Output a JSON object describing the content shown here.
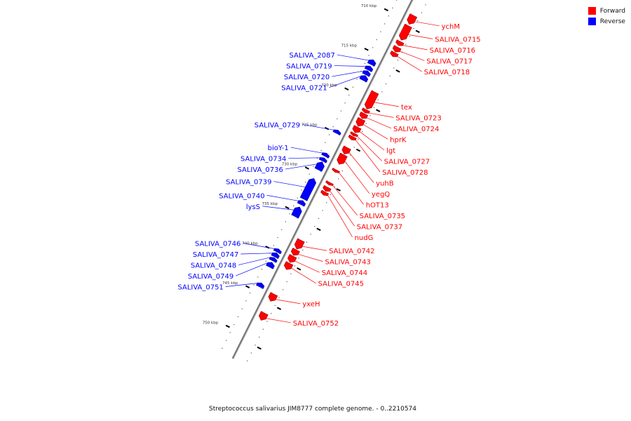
{
  "legend": {
    "forward_label": "Forward",
    "reverse_label": "Reverse",
    "forward_color": "#ff0000",
    "reverse_color": "#0000ff"
  },
  "caption": "Streptococcus salivarius JIM8777 complete genome. - 0..2210574",
  "axis": {
    "unit": "kbp",
    "ticks": [
      {
        "value": 710,
        "label": "710 kbp"
      },
      {
        "value": 715,
        "label": "715 kbp"
      },
      {
        "value": 720,
        "label": "720 kbp"
      },
      {
        "value": 725,
        "label": "725 kbp"
      },
      {
        "value": 730,
        "label": "730 kbp"
      },
      {
        "value": 735,
        "label": "735 kbp"
      },
      {
        "value": 740,
        "label": "740 kbp"
      },
      {
        "value": 745,
        "label": "745 kbp"
      },
      {
        "value": 750,
        "label": "750 kbp"
      }
    ]
  },
  "genes": {
    "forward": [
      {
        "name": "ychM",
        "start": 709.2,
        "end": 710.3
      },
      {
        "name": "SALIVA_0715",
        "start": 710.5,
        "end": 712.3
      },
      {
        "name": "SALIVA_0716",
        "start": 712.5,
        "end": 713.0
      },
      {
        "name": "SALIVA_0717",
        "start": 713.2,
        "end": 713.8
      },
      {
        "name": "SALIVA_0718",
        "start": 713.9,
        "end": 714.4
      },
      {
        "name": "tex",
        "start": 718.9,
        "end": 721.0
      },
      {
        "name": "SALIVA_0723",
        "start": 721.1,
        "end": 721.5
      },
      {
        "name": "SALIVA_0724",
        "start": 721.6,
        "end": 722.2
      },
      {
        "name": "hprK",
        "start": 722.3,
        "end": 723.2
      },
      {
        "name": "lgt",
        "start": 723.3,
        "end": 724.0
      },
      {
        "name": "SALIVA_0727",
        "start": 724.1,
        "end": 724.4
      },
      {
        "name": "SALIVA_0728",
        "start": 724.5,
        "end": 724.9
      },
      {
        "name": "yuhB",
        "start": 725.9,
        "end": 726.7
      },
      {
        "name": "yegQ",
        "start": 726.8,
        "end": 728.0
      },
      {
        "name": "hOT13",
        "start": 728.7,
        "end": 729.0
      },
      {
        "name": "SALIVA_0735",
        "start": 730.3,
        "end": 730.6
      },
      {
        "name": "SALIVA_0737",
        "start": 730.9,
        "end": 731.4
      },
      {
        "name": "nudG",
        "start": 731.5,
        "end": 731.9
      },
      {
        "name": "SALIVA_0742",
        "start": 737.6,
        "end": 738.7
      },
      {
        "name": "SALIVA_0743",
        "start": 738.8,
        "end": 739.5
      },
      {
        "name": "SALIVA_0744",
        "start": 739.6,
        "end": 740.4
      },
      {
        "name": "SALIVA_0745",
        "start": 740.5,
        "end": 741.3
      },
      {
        "name": "yxeH",
        "start": 744.4,
        "end": 745.3
      },
      {
        "name": "SALIVA_0752",
        "start": 746.8,
        "end": 747.7
      }
    ],
    "reverse": [
      {
        "name": "SALIVA_2087",
        "start": 715.7,
        "end": 716.3
      },
      {
        "name": "SALIVA_0719",
        "start": 716.5,
        "end": 717.0
      },
      {
        "name": "SALIVA_0720",
        "start": 717.1,
        "end": 717.6
      },
      {
        "name": "SALIVA_0721",
        "start": 717.7,
        "end": 718.3
      },
      {
        "name": "SALIVA_0729",
        "start": 724.6,
        "end": 725.0
      },
      {
        "name": "bioY-1",
        "start": 727.5,
        "end": 727.9
      },
      {
        "name": "SALIVA_0734",
        "start": 728.1,
        "end": 728.5
      },
      {
        "name": "SALIVA_0736",
        "start": 728.6,
        "end": 729.6
      },
      {
        "name": "SALIVA_0739",
        "start": 730.7,
        "end": 733.3
      },
      {
        "name": "SALIVA_0740",
        "start": 733.5,
        "end": 734.0
      },
      {
        "name": "lysS",
        "start": 734.3,
        "end": 735.5
      },
      {
        "name": "SALIVA_0746",
        "start": 739.6,
        "end": 740.0
      },
      {
        "name": "SALIVA_0747",
        "start": 740.1,
        "end": 740.6
      },
      {
        "name": "SALIVA_0748",
        "start": 740.7,
        "end": 741.1
      },
      {
        "name": "SALIVA_0749",
        "start": 741.3,
        "end": 741.9
      },
      {
        "name": "SALIVA_0751",
        "start": 743.9,
        "end": 744.4
      }
    ]
  }
}
